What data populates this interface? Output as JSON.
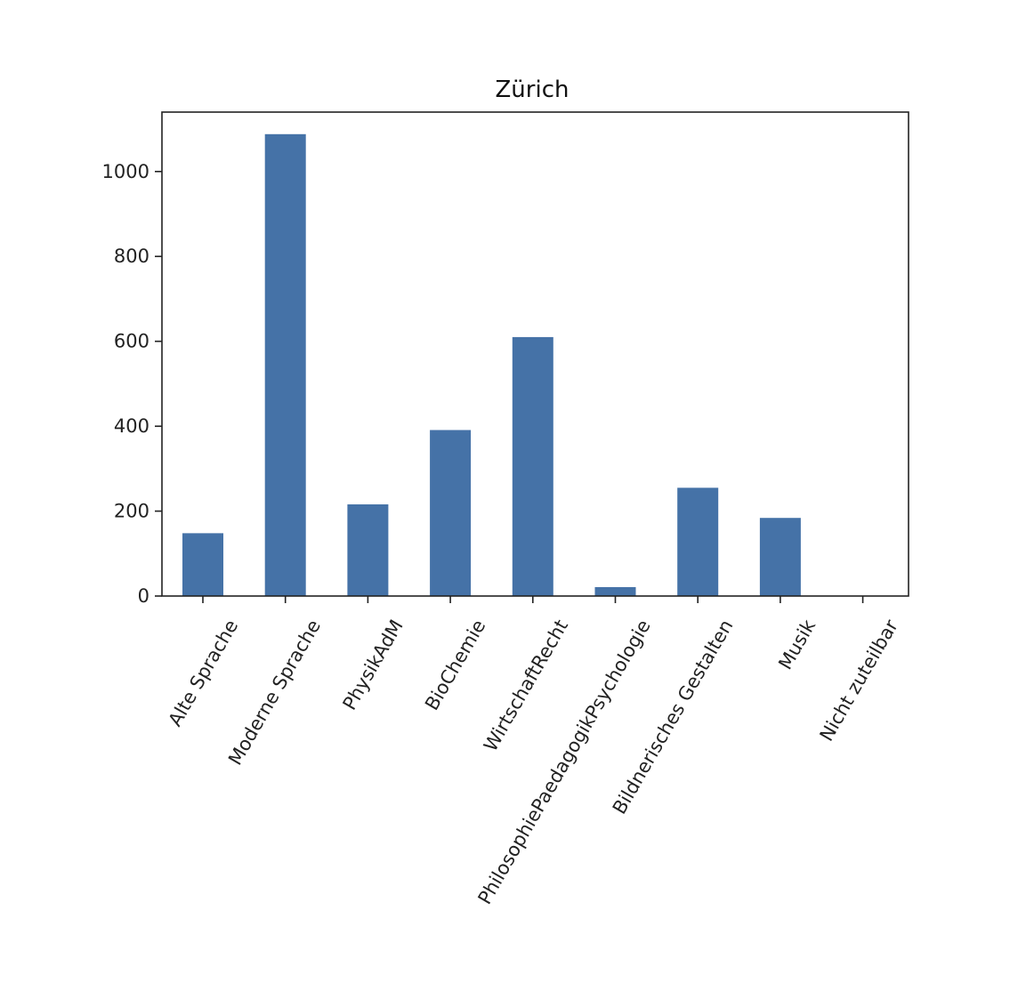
{
  "chart_data": {
    "type": "bar",
    "title": "Zürich",
    "xlabel": "",
    "ylabel": "",
    "categories": [
      "Alte Sprache",
      "Moderne Sprache",
      "PhysikAdM",
      "BioChemie",
      "WirtschaftRecht",
      "PhilosophiePaedagogikPsychologie",
      "Bildnerisches Gestalten",
      "Musik",
      "Nicht zuteilbar"
    ],
    "values": [
      148,
      1088,
      216,
      391,
      610,
      21,
      255,
      184,
      0
    ],
    "ylim": [
      0,
      1140
    ],
    "yticks": [
      0,
      200,
      400,
      600,
      800,
      1000
    ],
    "bar_color": "#4572a7",
    "grid": false,
    "legend": "none"
  }
}
